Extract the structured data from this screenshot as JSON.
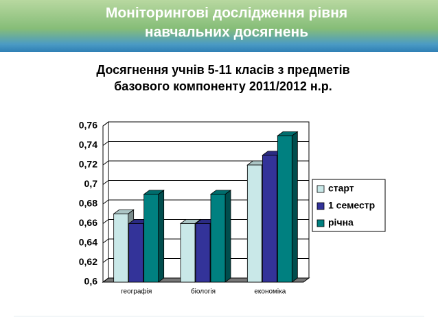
{
  "header": {
    "title": [
      "Моніторингові дослідження рівня",
      "навчальних досягнень"
    ]
  },
  "chart_data": {
    "type": "bar3d",
    "title": [
      "Досягнення учнів 5-11 класів з предметів",
      "базового компоненту 2011/2012 н.р."
    ],
    "categories": [
      "географія",
      "біологія",
      "економіка"
    ],
    "series": [
      {
        "name": "старт",
        "color": "#c9e8e8",
        "values": [
          0.67,
          0.66,
          0.72
        ]
      },
      {
        "name": "1 семестр",
        "color": "#333399",
        "values": [
          0.66,
          0.66,
          0.73
        ]
      },
      {
        "name": "річна",
        "color": "#008080",
        "values": [
          0.69,
          0.69,
          0.75
        ]
      }
    ],
    "ylim": [
      0.6,
      0.76
    ],
    "yticks": [
      {
        "value": 0.6,
        "label": "0,6"
      },
      {
        "value": 0.62,
        "label": "0,62"
      },
      {
        "value": 0.64,
        "label": "0,64"
      },
      {
        "value": 0.66,
        "label": "0,66"
      },
      {
        "value": 0.68,
        "label": "0,68"
      },
      {
        "value": 0.7,
        "label": "0,7"
      },
      {
        "value": 0.72,
        "label": "0,72"
      },
      {
        "value": 0.74,
        "label": "0,74"
      },
      {
        "value": 0.76,
        "label": "0,76"
      }
    ],
    "grid": true,
    "legend": "right"
  }
}
